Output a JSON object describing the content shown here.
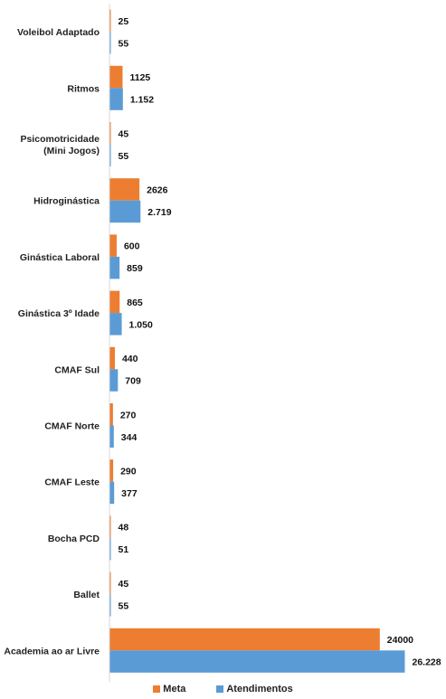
{
  "chart_data": {
    "type": "bar",
    "orientation": "horizontal",
    "categories": [
      "Voleibol Adaptado",
      "Ritmos",
      "Psicomotricidade (Mini Jogos)",
      "Hidroginástica",
      "Ginástica Laboral",
      "Ginástica 3º Idade",
      "CMAF Sul",
      "CMAF Norte",
      "CMAF Leste",
      "Bocha PCD",
      "Ballet",
      "Academia ao ar Livre"
    ],
    "category_lines": [
      [
        "Voleibol Adaptado"
      ],
      [
        "Ritmos"
      ],
      [
        "Psicomotricidade",
        "(Mini Jogos)"
      ],
      [
        "Hidroginástica"
      ],
      [
        "Ginástica Laboral"
      ],
      [
        "Ginástica 3º Idade"
      ],
      [
        "CMAF Sul"
      ],
      [
        "CMAF Norte"
      ],
      [
        "CMAF Leste"
      ],
      [
        "Bocha PCD"
      ],
      [
        "Ballet"
      ],
      [
        "Academia ao ar Livre"
      ]
    ],
    "series": [
      {
        "name": "Meta",
        "color": "#ED7D31",
        "values": [
          25,
          1125,
          45,
          2626,
          600,
          865,
          440,
          270,
          290,
          48,
          45,
          24000
        ],
        "labels": [
          "25",
          "1125",
          "45",
          "2626",
          "600",
          "865",
          "440",
          "270",
          "290",
          "48",
          "45",
          "24000"
        ]
      },
      {
        "name": "Atendimentos",
        "color": "#5B9BD5",
        "values": [
          55,
          1152,
          55,
          2719,
          859,
          1050,
          709,
          344,
          377,
          51,
          55,
          26228
        ],
        "labels": [
          "55",
          "1.152",
          "55",
          "2.719",
          "859",
          "1.050",
          "709",
          "344",
          "377",
          "51",
          "55",
          "26.228"
        ]
      }
    ],
    "xlim": [
      0,
      26228
    ],
    "grid": false,
    "legend_position": "bottom"
  }
}
